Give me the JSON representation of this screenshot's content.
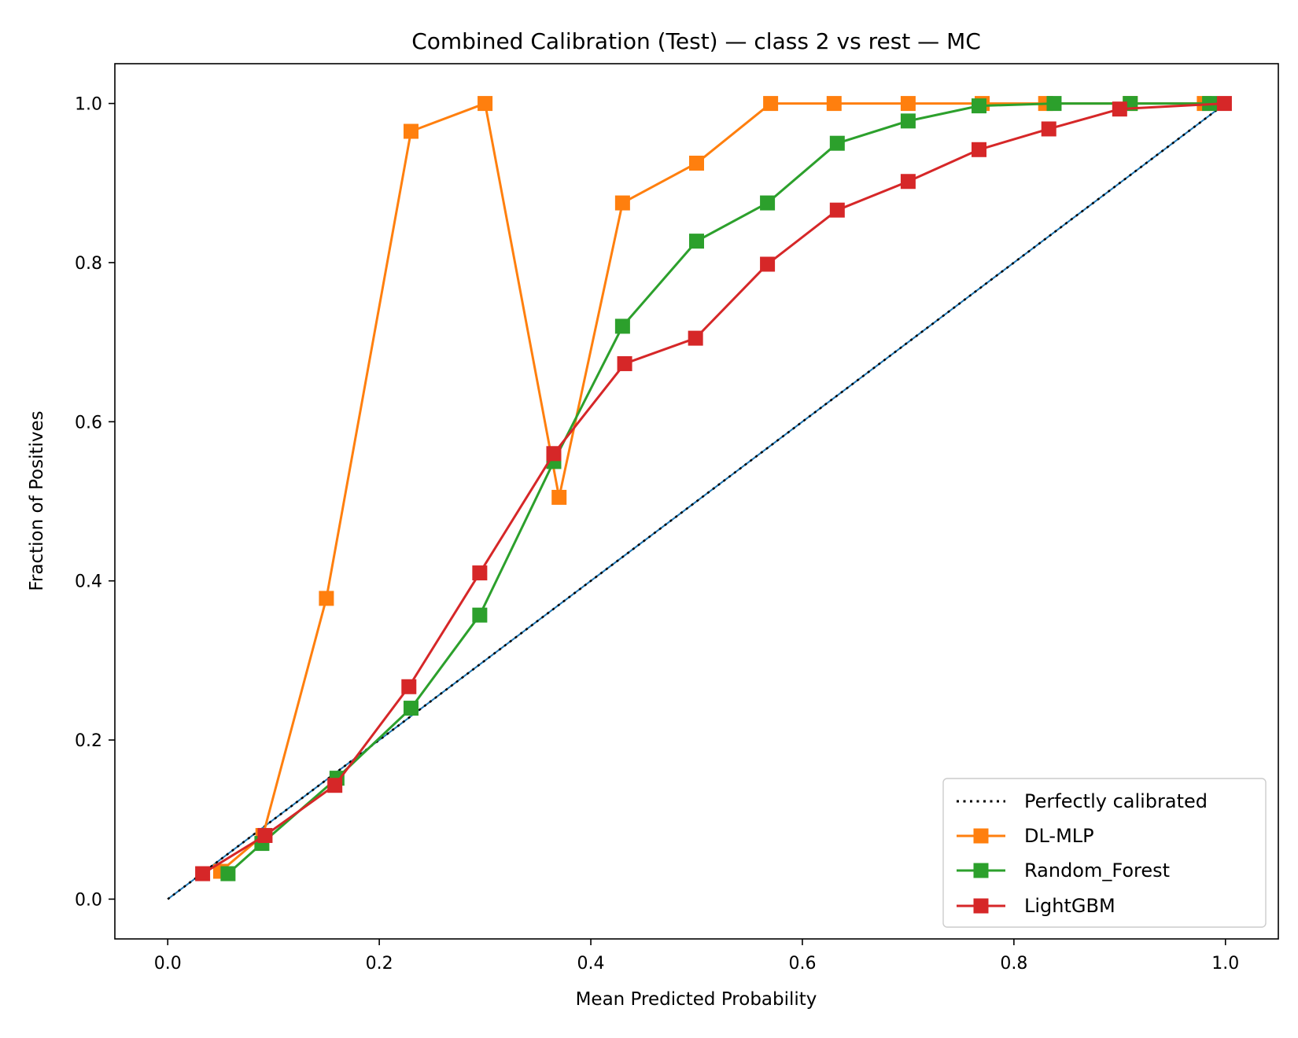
{
  "chart_data": {
    "type": "line",
    "title": "Combined Calibration (Test) — class 2 vs rest — MC",
    "xlabel": "Mean Predicted Probability",
    "ylabel": "Fraction of Positives",
    "xlim": [
      -0.05,
      1.05
    ],
    "ylim": [
      -0.05,
      1.05
    ],
    "xticks": [
      "0.0",
      "0.2",
      "0.4",
      "0.6",
      "0.8",
      "1.0"
    ],
    "yticks": [
      "0.0",
      "0.2",
      "0.4",
      "0.6",
      "0.8",
      "1.0"
    ],
    "grid": false,
    "legend_position": "lower-right",
    "reference": {
      "name": "Perfectly calibrated",
      "x": [
        0,
        1
      ],
      "y": [
        0,
        1
      ],
      "color": "#000000",
      "style": "dotted"
    },
    "series": [
      {
        "name": "DL-MLP",
        "color": "#ff7f0e",
        "marker": "square",
        "x": [
          0.05,
          0.09,
          0.15,
          0.23,
          0.3,
          0.37,
          0.43,
          0.5,
          0.57,
          0.63,
          0.7,
          0.77,
          0.83,
          0.91,
          0.98
        ],
        "y": [
          0.035,
          0.08,
          0.378,
          0.965,
          1.0,
          0.505,
          0.875,
          0.925,
          1.0,
          1.0,
          1.0,
          1.0,
          1.0,
          1.0,
          1.0
        ]
      },
      {
        "name": "Random_Forest",
        "color": "#2ca02c",
        "marker": "square",
        "x": [
          0.057,
          0.089,
          0.16,
          0.23,
          0.295,
          0.365,
          0.43,
          0.5,
          0.567,
          0.633,
          0.7,
          0.767,
          0.838,
          0.91,
          0.985
        ],
        "y": [
          0.032,
          0.07,
          0.152,
          0.24,
          0.357,
          0.55,
          0.72,
          0.827,
          0.875,
          0.95,
          0.978,
          0.997,
          1.0,
          1.0,
          1.0
        ]
      },
      {
        "name": "LightGBM",
        "color": "#d62728",
        "marker": "square",
        "x": [
          0.033,
          0.092,
          0.158,
          0.228,
          0.295,
          0.365,
          0.432,
          0.499,
          0.567,
          0.633,
          0.7,
          0.767,
          0.833,
          0.9,
          0.999
        ],
        "y": [
          0.032,
          0.08,
          0.143,
          0.267,
          0.41,
          0.56,
          0.673,
          0.705,
          0.798,
          0.866,
          0.902,
          0.942,
          0.968,
          0.993,
          1.0
        ]
      }
    ]
  }
}
